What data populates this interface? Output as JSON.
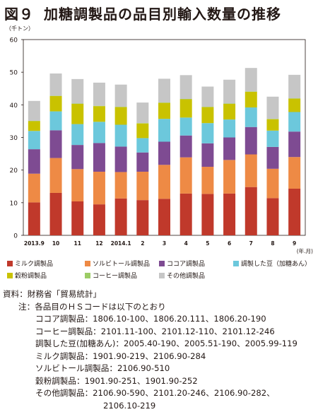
{
  "figure": {
    "number": "図９",
    "title": "加糖調製品の品目別輸入数量の推移"
  },
  "chart_data": {
    "type": "bar",
    "stacked": true,
    "unit_label": "（千トン）",
    "x_unit_label": "(年.月)",
    "ylim": [
      0,
      60
    ],
    "yticks": [
      0,
      10,
      20,
      30,
      40,
      50,
      60
    ],
    "grid": false,
    "categories": [
      "2013.9",
      "10",
      "11",
      "12",
      "2014.1",
      "2",
      "3",
      "4",
      "5",
      "6",
      "7",
      "8",
      "9"
    ],
    "series": [
      {
        "name": "ミルク調製品",
        "color": "#c0392b",
        "values": [
          10.1,
          13.0,
          10.4,
          9.5,
          11.3,
          10.8,
          11.2,
          12.8,
          12.7,
          12.8,
          14.8,
          11.4,
          14.3
        ]
      },
      {
        "name": "ソルビトール調製品",
        "color": "#ee8a45",
        "values": [
          8.8,
          10.7,
          9.9,
          10.0,
          8.1,
          8.7,
          10.4,
          11.1,
          8.3,
          10.3,
          10.0,
          9.0,
          9.7
        ]
      },
      {
        "name": "ココア調製品",
        "color": "#7e4b92",
        "values": [
          7.5,
          8.5,
          7.4,
          8.8,
          7.8,
          5.9,
          7.1,
          6.7,
          7.2,
          6.9,
          8.4,
          6.7,
          7.8
        ]
      },
      {
        "name": "調製した豆（加糖あん）",
        "color": "#6cc8dc",
        "values": [
          5.6,
          5.8,
          6.4,
          6.5,
          6.7,
          4.4,
          7.0,
          5.5,
          6.2,
          5.5,
          6.0,
          5.0,
          6.0
        ]
      },
      {
        "name": "穀粉調製品",
        "color": "#c9c200",
        "values": [
          3.0,
          4.7,
          6.2,
          4.8,
          5.4,
          4.5,
          4.9,
          5.6,
          4.9,
          4.8,
          4.8,
          3.5,
          4.1
        ]
      },
      {
        "name": "コーヒー調製品",
        "color": "#9ccc65",
        "values": [
          0.1,
          0.1,
          0.1,
          0.1,
          0.1,
          0.1,
          0.1,
          0.1,
          0.1,
          0.1,
          0.1,
          0.1,
          0.1
        ]
      },
      {
        "name": "その他調製品",
        "color": "#c6c6c6",
        "values": [
          6.1,
          6.8,
          7.5,
          7.1,
          6.8,
          6.3,
          7.3,
          7.3,
          6.2,
          7.3,
          7.2,
          6.8,
          7.2
        ]
      }
    ]
  },
  "notes": {
    "source_label": "資料：",
    "source_text": "財務省「貿易統計」",
    "note_label": "注：",
    "note_text": "各品目のＨＳコードは以下のとおり",
    "lines": [
      "ココア調製品：1806.10-100、1806.20.111、1806.20-190",
      "コーヒー調製品：2101.11-100、2101.12-110、2101.12-246",
      "調製した豆(加糖あん)：2005.40-190、2005.51-190、2005.99-119",
      "ミルク調製品：1901.90-219、2106.90-284",
      "ソルビトール調製品：2106.90-510",
      "穀粉調製品：1901.90-251、1901.90-252",
      "その他調製品：2106.90-590、2101.20-246、2106.90-282、",
      "2106.10-219"
    ]
  }
}
